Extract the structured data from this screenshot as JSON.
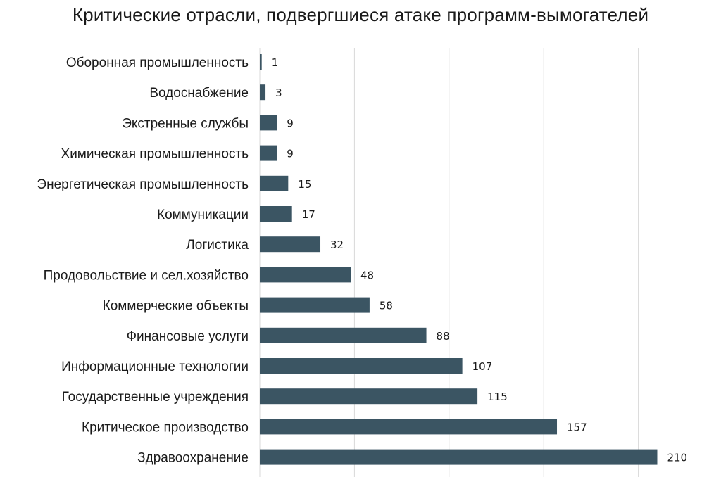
{
  "chart_data": {
    "type": "bar",
    "orientation": "horizontal",
    "title": "Критические отрасли, подвергшиеся атаке программ-вымогателей",
    "categories": [
      "Оборонная промышленность",
      "Водоснабжение",
      "Экстренные службы",
      "Химическая промышленность",
      "Энергетическая промышленность",
      "Коммуникации",
      "Логистика",
      "Продовольствие и сел.хозяйство",
      "Коммерческие объекты",
      "Финансовые услуги",
      "Информационные технологии",
      "Государственные учреждения",
      "Критическое производство",
      "Здравоохранение"
    ],
    "values": [
      1,
      3,
      9,
      9,
      15,
      17,
      32,
      48,
      58,
      88,
      107,
      115,
      157,
      210
    ],
    "xlim": [
      0,
      250
    ],
    "gridlines": [
      0,
      50,
      100,
      150,
      200,
      250
    ],
    "grid": true,
    "data_labels": true,
    "bar_color": "#3b5563"
  }
}
